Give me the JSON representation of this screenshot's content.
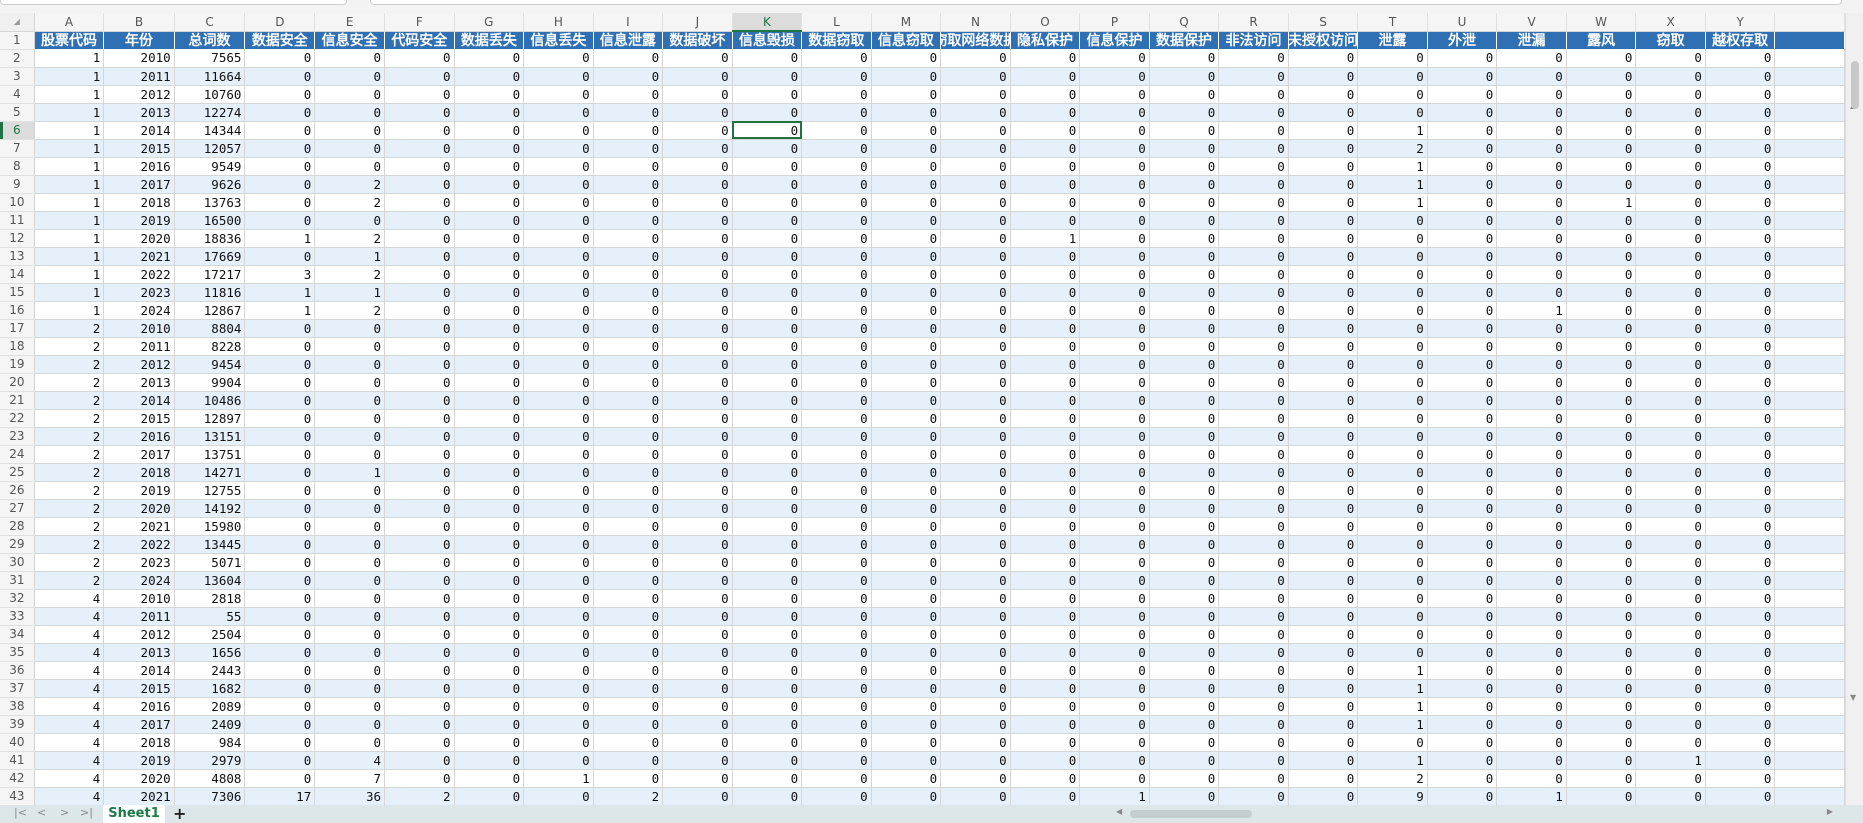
{
  "sheet": {
    "active_cell": "K6",
    "column_letters": [
      "A",
      "B",
      "C",
      "D",
      "E",
      "F",
      "G",
      "H",
      "I",
      "J",
      "K",
      "L",
      "M",
      "N",
      "O",
      "P",
      "Q",
      "R",
      "S",
      "T",
      "U",
      "V",
      "W",
      "X",
      "Y",
      ""
    ],
    "headers": [
      "股票代码",
      "年份",
      "总词数",
      "数据安全",
      "信息安全",
      "代码安全",
      "数据丢失",
      "信息丢失",
      "信息泄露",
      "数据破坏",
      "信息毁损",
      "数据窃取",
      "信息窃取",
      "窃取网络数据",
      "隐私保护",
      "信息保护",
      "数据保护",
      "非法访问",
      "未授权访问",
      "泄露",
      "外泄",
      "泄漏",
      "露风",
      "窃取",
      "越权存取",
      ""
    ],
    "rows": [
      [
        1,
        2010,
        7565,
        0,
        0,
        0,
        0,
        0,
        0,
        0,
        0,
        0,
        0,
        0,
        0,
        0,
        0,
        0,
        0,
        0,
        0,
        0,
        0,
        0,
        0
      ],
      [
        1,
        2011,
        11664,
        0,
        0,
        0,
        0,
        0,
        0,
        0,
        0,
        0,
        0,
        0,
        0,
        0,
        0,
        0,
        0,
        0,
        0,
        0,
        0,
        0,
        0
      ],
      [
        1,
        2012,
        10760,
        0,
        0,
        0,
        0,
        0,
        0,
        0,
        0,
        0,
        0,
        0,
        0,
        0,
        0,
        0,
        0,
        0,
        0,
        0,
        0,
        0,
        0
      ],
      [
        1,
        2013,
        12274,
        0,
        0,
        0,
        0,
        0,
        0,
        0,
        0,
        0,
        0,
        0,
        0,
        0,
        0,
        0,
        0,
        0,
        0,
        0,
        0,
        0,
        0
      ],
      [
        1,
        2014,
        14344,
        0,
        0,
        0,
        0,
        0,
        0,
        0,
        0,
        0,
        0,
        0,
        0,
        0,
        0,
        0,
        0,
        1,
        0,
        0,
        0,
        0,
        0
      ],
      [
        1,
        2015,
        12057,
        0,
        0,
        0,
        0,
        0,
        0,
        0,
        0,
        0,
        0,
        0,
        0,
        0,
        0,
        0,
        0,
        2,
        0,
        0,
        0,
        0,
        0
      ],
      [
        1,
        2016,
        9549,
        0,
        0,
        0,
        0,
        0,
        0,
        0,
        0,
        0,
        0,
        0,
        0,
        0,
        0,
        0,
        0,
        1,
        0,
        0,
        0,
        0,
        0
      ],
      [
        1,
        2017,
        9626,
        0,
        2,
        0,
        0,
        0,
        0,
        0,
        0,
        0,
        0,
        0,
        0,
        0,
        0,
        0,
        0,
        1,
        0,
        0,
        0,
        0,
        0
      ],
      [
        1,
        2018,
        13763,
        0,
        2,
        0,
        0,
        0,
        0,
        0,
        0,
        0,
        0,
        0,
        0,
        0,
        0,
        0,
        0,
        1,
        0,
        0,
        1,
        0,
        0
      ],
      [
        1,
        2019,
        16500,
        0,
        0,
        0,
        0,
        0,
        0,
        0,
        0,
        0,
        0,
        0,
        0,
        0,
        0,
        0,
        0,
        0,
        0,
        0,
        0,
        0,
        0
      ],
      [
        1,
        2020,
        18836,
        1,
        2,
        0,
        0,
        0,
        0,
        0,
        0,
        0,
        0,
        0,
        1,
        0,
        0,
        0,
        0,
        0,
        0,
        0,
        0,
        0,
        0
      ],
      [
        1,
        2021,
        17669,
        0,
        1,
        0,
        0,
        0,
        0,
        0,
        0,
        0,
        0,
        0,
        0,
        0,
        0,
        0,
        0,
        0,
        0,
        0,
        0,
        0,
        0
      ],
      [
        1,
        2022,
        17217,
        3,
        2,
        0,
        0,
        0,
        0,
        0,
        0,
        0,
        0,
        0,
        0,
        0,
        0,
        0,
        0,
        0,
        0,
        0,
        0,
        0,
        0
      ],
      [
        1,
        2023,
        11816,
        1,
        1,
        0,
        0,
        0,
        0,
        0,
        0,
        0,
        0,
        0,
        0,
        0,
        0,
        0,
        0,
        0,
        0,
        0,
        0,
        0,
        0
      ],
      [
        1,
        2024,
        12867,
        1,
        2,
        0,
        0,
        0,
        0,
        0,
        0,
        0,
        0,
        0,
        0,
        0,
        0,
        0,
        0,
        0,
        0,
        1,
        0,
        0,
        0
      ],
      [
        2,
        2010,
        8804,
        0,
        0,
        0,
        0,
        0,
        0,
        0,
        0,
        0,
        0,
        0,
        0,
        0,
        0,
        0,
        0,
        0,
        0,
        0,
        0,
        0,
        0
      ],
      [
        2,
        2011,
        8228,
        0,
        0,
        0,
        0,
        0,
        0,
        0,
        0,
        0,
        0,
        0,
        0,
        0,
        0,
        0,
        0,
        0,
        0,
        0,
        0,
        0,
        0
      ],
      [
        2,
        2012,
        9454,
        0,
        0,
        0,
        0,
        0,
        0,
        0,
        0,
        0,
        0,
        0,
        0,
        0,
        0,
        0,
        0,
        0,
        0,
        0,
        0,
        0,
        0
      ],
      [
        2,
        2013,
        9904,
        0,
        0,
        0,
        0,
        0,
        0,
        0,
        0,
        0,
        0,
        0,
        0,
        0,
        0,
        0,
        0,
        0,
        0,
        0,
        0,
        0,
        0
      ],
      [
        2,
        2014,
        10486,
        0,
        0,
        0,
        0,
        0,
        0,
        0,
        0,
        0,
        0,
        0,
        0,
        0,
        0,
        0,
        0,
        0,
        0,
        0,
        0,
        0,
        0
      ],
      [
        2,
        2015,
        12897,
        0,
        0,
        0,
        0,
        0,
        0,
        0,
        0,
        0,
        0,
        0,
        0,
        0,
        0,
        0,
        0,
        0,
        0,
        0,
        0,
        0,
        0
      ],
      [
        2,
        2016,
        13151,
        0,
        0,
        0,
        0,
        0,
        0,
        0,
        0,
        0,
        0,
        0,
        0,
        0,
        0,
        0,
        0,
        0,
        0,
        0,
        0,
        0,
        0
      ],
      [
        2,
        2017,
        13751,
        0,
        0,
        0,
        0,
        0,
        0,
        0,
        0,
        0,
        0,
        0,
        0,
        0,
        0,
        0,
        0,
        0,
        0,
        0,
        0,
        0,
        0
      ],
      [
        2,
        2018,
        14271,
        0,
        1,
        0,
        0,
        0,
        0,
        0,
        0,
        0,
        0,
        0,
        0,
        0,
        0,
        0,
        0,
        0,
        0,
        0,
        0,
        0,
        0
      ],
      [
        2,
        2019,
        12755,
        0,
        0,
        0,
        0,
        0,
        0,
        0,
        0,
        0,
        0,
        0,
        0,
        0,
        0,
        0,
        0,
        0,
        0,
        0,
        0,
        0,
        0
      ],
      [
        2,
        2020,
        14192,
        0,
        0,
        0,
        0,
        0,
        0,
        0,
        0,
        0,
        0,
        0,
        0,
        0,
        0,
        0,
        0,
        0,
        0,
        0,
        0,
        0,
        0
      ],
      [
        2,
        2021,
        15980,
        0,
        0,
        0,
        0,
        0,
        0,
        0,
        0,
        0,
        0,
        0,
        0,
        0,
        0,
        0,
        0,
        0,
        0,
        0,
        0,
        0,
        0
      ],
      [
        2,
        2022,
        13445,
        0,
        0,
        0,
        0,
        0,
        0,
        0,
        0,
        0,
        0,
        0,
        0,
        0,
        0,
        0,
        0,
        0,
        0,
        0,
        0,
        0,
        0
      ],
      [
        2,
        2023,
        5071,
        0,
        0,
        0,
        0,
        0,
        0,
        0,
        0,
        0,
        0,
        0,
        0,
        0,
        0,
        0,
        0,
        0,
        0,
        0,
        0,
        0,
        0
      ],
      [
        2,
        2024,
        13604,
        0,
        0,
        0,
        0,
        0,
        0,
        0,
        0,
        0,
        0,
        0,
        0,
        0,
        0,
        0,
        0,
        0,
        0,
        0,
        0,
        0,
        0
      ],
      [
        4,
        2010,
        2818,
        0,
        0,
        0,
        0,
        0,
        0,
        0,
        0,
        0,
        0,
        0,
        0,
        0,
        0,
        0,
        0,
        0,
        0,
        0,
        0,
        0,
        0
      ],
      [
        4,
        2011,
        55,
        0,
        0,
        0,
        0,
        0,
        0,
        0,
        0,
        0,
        0,
        0,
        0,
        0,
        0,
        0,
        0,
        0,
        0,
        0,
        0,
        0,
        0
      ],
      [
        4,
        2012,
        2504,
        0,
        0,
        0,
        0,
        0,
        0,
        0,
        0,
        0,
        0,
        0,
        0,
        0,
        0,
        0,
        0,
        0,
        0,
        0,
        0,
        0,
        0
      ],
      [
        4,
        2013,
        1656,
        0,
        0,
        0,
        0,
        0,
        0,
        0,
        0,
        0,
        0,
        0,
        0,
        0,
        0,
        0,
        0,
        0,
        0,
        0,
        0,
        0,
        0
      ],
      [
        4,
        2014,
        2443,
        0,
        0,
        0,
        0,
        0,
        0,
        0,
        0,
        0,
        0,
        0,
        0,
        0,
        0,
        0,
        0,
        1,
        0,
        0,
        0,
        0,
        0
      ],
      [
        4,
        2015,
        1682,
        0,
        0,
        0,
        0,
        0,
        0,
        0,
        0,
        0,
        0,
        0,
        0,
        0,
        0,
        0,
        0,
        1,
        0,
        0,
        0,
        0,
        0
      ],
      [
        4,
        2016,
        2089,
        0,
        0,
        0,
        0,
        0,
        0,
        0,
        0,
        0,
        0,
        0,
        0,
        0,
        0,
        0,
        0,
        1,
        0,
        0,
        0,
        0,
        0
      ],
      [
        4,
        2017,
        2409,
        0,
        0,
        0,
        0,
        0,
        0,
        0,
        0,
        0,
        0,
        0,
        0,
        0,
        0,
        0,
        0,
        1,
        0,
        0,
        0,
        0,
        0
      ],
      [
        4,
        2018,
        984,
        0,
        0,
        0,
        0,
        0,
        0,
        0,
        0,
        0,
        0,
        0,
        0,
        0,
        0,
        0,
        0,
        0,
        0,
        0,
        0,
        0,
        0
      ],
      [
        4,
        2019,
        2979,
        0,
        4,
        0,
        0,
        0,
        0,
        0,
        0,
        0,
        0,
        0,
        0,
        0,
        0,
        0,
        0,
        1,
        0,
        0,
        0,
        1,
        0
      ],
      [
        4,
        2020,
        4808,
        0,
        7,
        0,
        0,
        1,
        0,
        0,
        0,
        0,
        0,
        0,
        0,
        0,
        0,
        0,
        0,
        2,
        0,
        0,
        0,
        0,
        0
      ],
      [
        4,
        2021,
        7306,
        17,
        36,
        2,
        0,
        0,
        2,
        0,
        0,
        0,
        0,
        0,
        0,
        1,
        0,
        0,
        0,
        9,
        0,
        1,
        0,
        0,
        0
      ]
    ]
  },
  "tabs": {
    "sheet1": "Sheet1",
    "add": "+"
  },
  "nav": {
    "first": "|<",
    "prev": "<",
    "next": ">",
    "last": ">|"
  },
  "colors": {
    "header_bg": "#2f6fb3",
    "accent": "#217346",
    "band": "#e6f0fb"
  }
}
